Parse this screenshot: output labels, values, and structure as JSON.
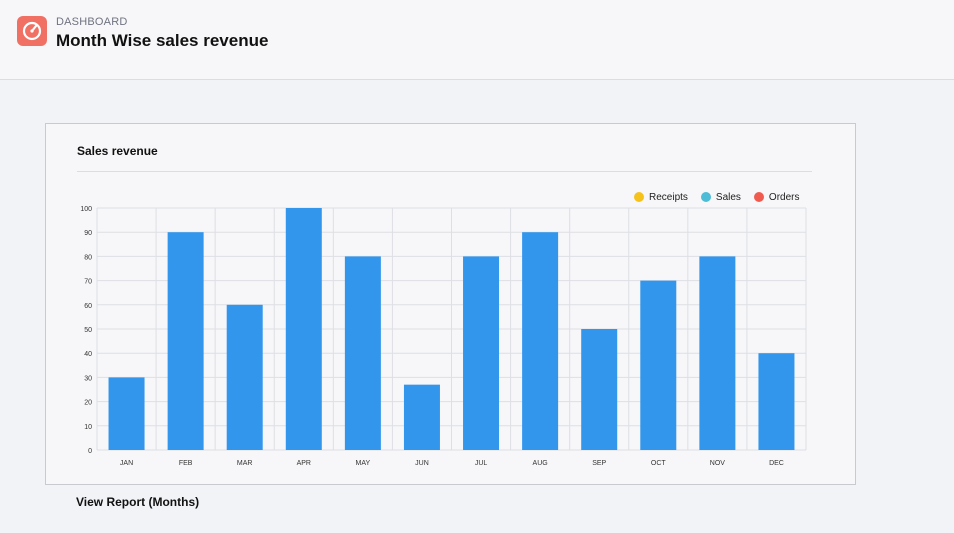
{
  "header": {
    "breadcrumb": "DASHBOARD",
    "title": "Month Wise sales revenue",
    "logo_icon": "speedometer-icon"
  },
  "card": {
    "title": "Sales revenue"
  },
  "legend": [
    {
      "label": "Receipts",
      "color": "#f5c21b"
    },
    {
      "label": "Sales",
      "color": "#4dbcd6"
    },
    {
      "label": "Orders",
      "color": "#f05b4f"
    }
  ],
  "colors": {
    "bar": "#3296ec",
    "accent": "#f07164"
  },
  "chart_data": {
    "type": "bar",
    "title": "Sales revenue",
    "categories": [
      "JAN",
      "FEB",
      "MAR",
      "APR",
      "MAY",
      "JUN",
      "JUL",
      "AUG",
      "SEP",
      "OCT",
      "NOV",
      "DEC"
    ],
    "values": [
      30,
      90,
      60,
      100,
      80,
      27,
      80,
      90,
      50,
      70,
      80,
      40
    ],
    "ylim": [
      0,
      100
    ],
    "yticks": [
      0,
      10,
      20,
      30,
      40,
      50,
      60,
      70,
      80,
      90,
      100
    ],
    "grid": true,
    "legend_position": "top-right"
  },
  "footer": {
    "link_label": "View Report (Months)"
  }
}
